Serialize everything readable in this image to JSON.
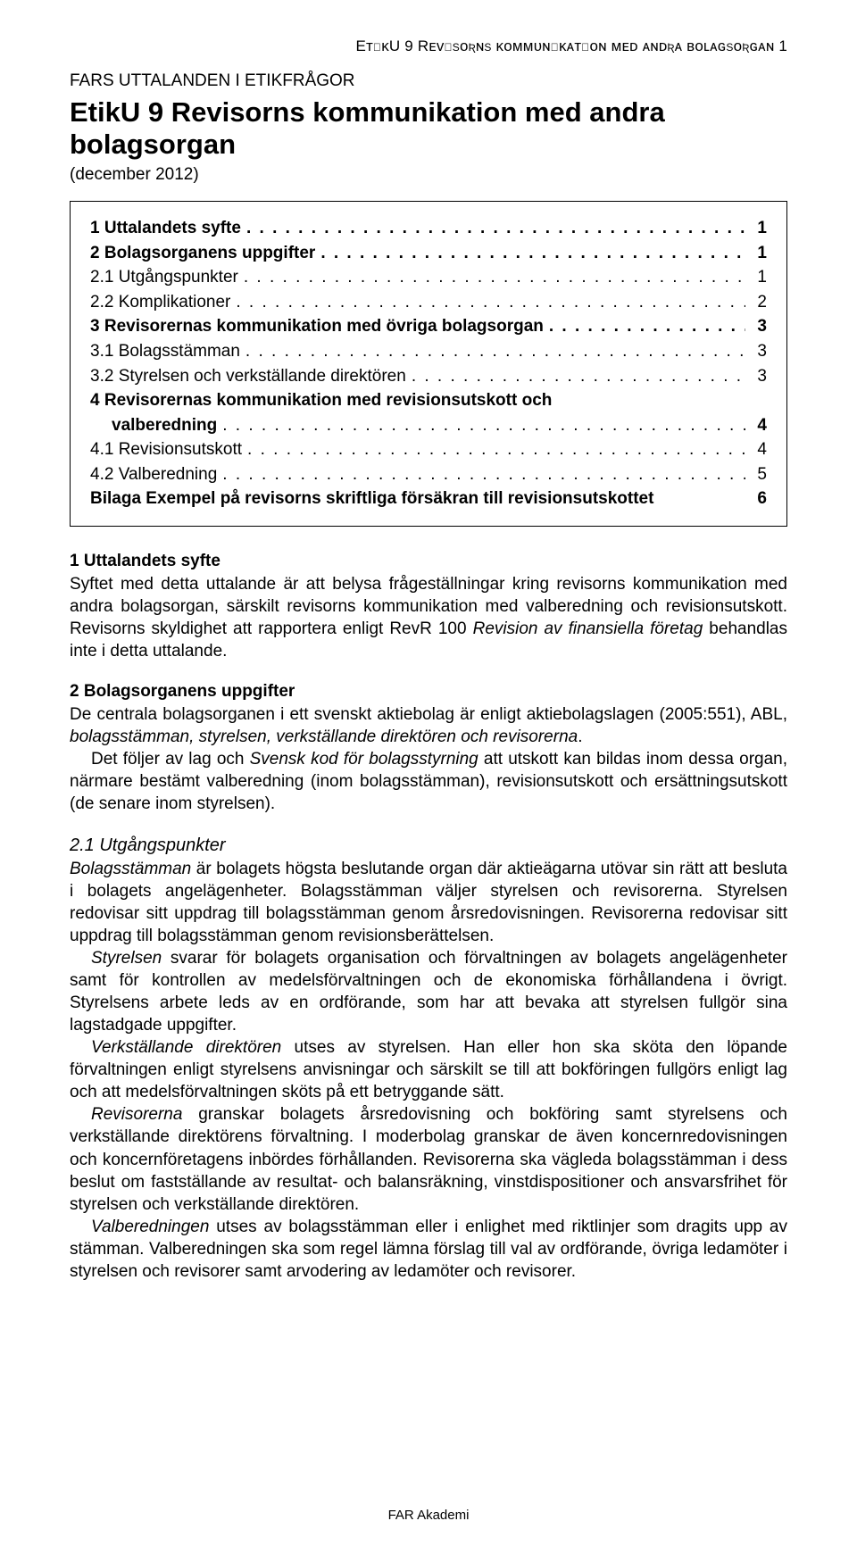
{
  "header": {
    "text": "EᴛɪᴋU 9  Rᴇᴠɪsᴏʀɴs ᴋᴏᴍᴍᴜɴɪᴋᴀᴛɪᴏɴ ᴍᴇᴅ ᴀɴᴅʀᴀ ʙᴏʟᴀɢsᴏʀɢᴀɴ  1"
  },
  "series": "FARS UTTALANDEN I ETIKFRÅGOR",
  "title": "EtikU 9 Revisorns kommunikation med andra bolagsorgan",
  "date": "(december 2012)",
  "toc": {
    "r1": {
      "label": "1 Uttalandets syfte",
      "page": "1"
    },
    "r2": {
      "label": "2 Bolagsorganens uppgifter",
      "page": "1"
    },
    "r3": {
      "label": "2.1 Utgångspunkter",
      "page": "1"
    },
    "r4": {
      "label": "2.2 Komplikationer",
      "page": "2"
    },
    "r5": {
      "label": "3 Revisorernas kommunikation med övriga bolagsorgan",
      "page": "3"
    },
    "r6": {
      "label": "3.1 Bolagsstämman",
      "page": "3"
    },
    "r7": {
      "label": "3.2 Styrelsen och verkställande direktören",
      "page": "3"
    },
    "r8a": {
      "label": "4 Revisorernas kommunikation med revisionsutskott och"
    },
    "r8b": {
      "label": "valberedning",
      "page": "4"
    },
    "r9": {
      "label": "4.1 Revisionsutskott",
      "page": "4"
    },
    "r10": {
      "label": "4.2 Valberedning",
      "page": "5"
    },
    "r11": {
      "label": "Bilaga  Exempel på revisorns skriftliga försäkran till revisionsutskottet",
      "page": "6"
    }
  },
  "s1": {
    "heading": "1 Uttalandets syfte",
    "p1a": "Syftet med detta uttalande är att belysa frågeställningar kring revisorns kommunikation med andra bolagsorgan, särskilt revisorns kommunikation med valberedning och revisionsutskott. Revisorns skyldighet att rapportera enligt RevR 100 ",
    "p1b": "Revision av finansiella företag",
    "p1c": " behandlas inte i detta uttalande."
  },
  "s2": {
    "heading": "2 Bolagsorganens uppgifter",
    "p1a": "De centrala bolagsorganen i ett svenskt aktiebolag är enligt aktiebolagslagen (2005:551), ABL, ",
    "p1b": "bolagsstämman, styrelsen, verkställande direktören och revisorerna",
    "p1c": ".",
    "p2a": "Det följer av lag och ",
    "p2b": "Svensk kod för bolagsstyrning",
    "p2c": " att utskott kan bildas inom dessa organ, närmare bestämt valberedning (inom bolagsstämman), revisionsutskott och ersättningsutskott (de senare inom styrelsen)."
  },
  "s3": {
    "heading": "2.1 Utgångspunkter",
    "p1a": "Bolagsstämman",
    "p1b": " är bolagets högsta beslutande organ där aktieägarna utövar sin rätt att besluta i bolagets angelägenheter. Bolagsstämman väljer styrelsen och revisorerna. Styrelsen redovisar sitt uppdrag till bolagsstämman genom årsredovisningen. Revisorerna redovisar sitt uppdrag till bolagsstämman genom revisionsberättelsen.",
    "p2a": "Styrelsen",
    "p2b": " svarar för bolagets organisation och förvaltningen av bolagets angelägenheter samt för kontrollen av medelsförvaltningen och de ekonomiska förhållandena i övrigt. Styrelsens arbete leds av en ordförande, som har att bevaka att styrelsen fullgör sina lagstadgade uppgifter.",
    "p3a": "Verkställande direktören",
    "p3b": " utses av styrelsen. Han eller hon ska sköta den löpande förvaltningen enligt styrelsens anvisningar och särskilt se till att bokföringen fullgörs enligt lag och att medelsförvaltningen sköts på ett betryggande sätt.",
    "p4a": "Revisorerna",
    "p4b": " granskar bolagets årsredovisning och bokföring samt styrelsens och verkställande direktörens förvaltning. I moderbolag granskar de även koncernredovisningen och koncernföretagens inbördes förhållanden. Revisorerna ska vägleda bolagsstämman i dess beslut om fastställande av resultat- och balansräkning, vinstdispositioner och ansvarsfrihet för styrelsen och verkställande direktören.",
    "p5a": "Valberedningen",
    "p5b": " utses av bolagsstämman eller i enlighet med riktlinjer som dragits upp av stämman. Valberedningen ska som regel lämna förslag till val av ordförande, övriga ledamöter i styrelsen och revisorer samt arvodering av ledamöter och revisorer."
  },
  "footer": "FAR Akademi"
}
